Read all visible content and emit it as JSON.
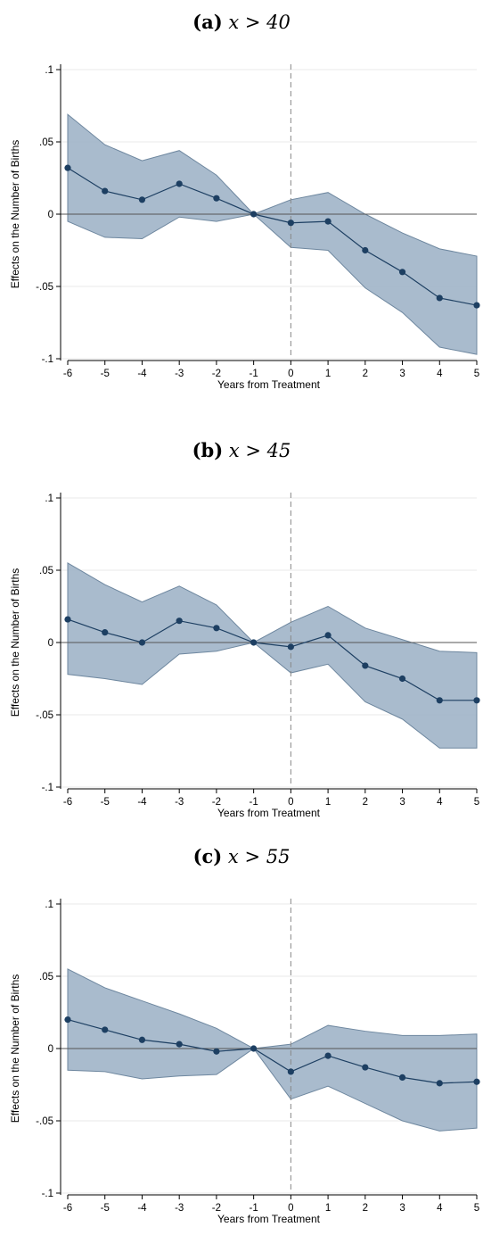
{
  "panels": [
    {
      "label": "(a)",
      "condition": "x > 40"
    },
    {
      "label": "(b)",
      "condition": "x > 45"
    },
    {
      "label": "(c)",
      "condition": "x > 55"
    }
  ],
  "colors": {
    "band": "#9aafc4",
    "band_edge": "#6e879f",
    "line": "#1d3f62",
    "zero": "#555555",
    "grid": "#e8e8e8",
    "vline": "#888888"
  },
  "chart_data": [
    {
      "type": "line",
      "title": "(a) x > 40",
      "xlabel": "Years from Treatment",
      "ylabel": "Effects on the Number of Births",
      "x": [
        -6,
        -5,
        -4,
        -3,
        -2,
        -1,
        0,
        1,
        2,
        3,
        4,
        5
      ],
      "xticks": [
        "-6",
        "-5",
        "-4",
        "-3",
        "-2",
        "-1",
        "0",
        "1",
        "2",
        "3",
        "4",
        "5"
      ],
      "yticks": [
        ".1",
        ".05",
        "0",
        "-.05",
        "-.1"
      ],
      "ytick_values": [
        0.1,
        0.05,
        0,
        -0.05,
        -0.1
      ],
      "ylim": [
        -0.1,
        0.1
      ],
      "vline_x": 0,
      "hline_y": 0,
      "series": [
        {
          "estimate": [
            0.032,
            0.016,
            0.01,
            0.021,
            0.011,
            0.0,
            -0.006,
            -0.005,
            -0.025,
            -0.04,
            -0.058,
            -0.063
          ],
          "ci_upper": [
            0.069,
            0.048,
            0.037,
            0.044,
            0.027,
            0.0,
            0.01,
            0.015,
            0.0,
            -0.013,
            -0.024,
            -0.029
          ],
          "ci_lower": [
            -0.005,
            -0.016,
            -0.017,
            -0.002,
            -0.005,
            0.0,
            -0.023,
            -0.025,
            -0.051,
            -0.068,
            -0.092,
            -0.097
          ]
        }
      ]
    },
    {
      "type": "line",
      "title": "(b) x > 45",
      "xlabel": "Years from Treatment",
      "ylabel": "Effects on the Number of Births",
      "x": [
        -6,
        -5,
        -4,
        -3,
        -2,
        -1,
        0,
        1,
        2,
        3,
        4,
        5
      ],
      "xticks": [
        "-6",
        "-5",
        "-4",
        "-3",
        "-2",
        "-1",
        "0",
        "1",
        "2",
        "3",
        "4",
        "5"
      ],
      "yticks": [
        ".1",
        ".05",
        "0",
        "-.05",
        "-.1"
      ],
      "ytick_values": [
        0.1,
        0.05,
        0,
        -0.05,
        -0.1
      ],
      "ylim": [
        -0.1,
        0.1
      ],
      "vline_x": 0,
      "hline_y": 0,
      "series": [
        {
          "estimate": [
            0.016,
            0.007,
            0.0,
            0.015,
            0.01,
            0.0,
            -0.003,
            0.005,
            -0.016,
            -0.025,
            -0.04,
            -0.04
          ],
          "ci_upper": [
            0.055,
            0.04,
            0.028,
            0.039,
            0.026,
            0.0,
            0.014,
            0.025,
            0.01,
            0.002,
            -0.006,
            -0.007
          ],
          "ci_lower": [
            -0.022,
            -0.025,
            -0.029,
            -0.008,
            -0.006,
            0.0,
            -0.021,
            -0.015,
            -0.041,
            -0.053,
            -0.073,
            -0.073
          ]
        }
      ]
    },
    {
      "type": "line",
      "title": "(c) x > 55",
      "xlabel": "Years from Treatment",
      "ylabel": "Effects on the Number of Births",
      "x": [
        -6,
        -5,
        -4,
        -3,
        -2,
        -1,
        0,
        1,
        2,
        3,
        4,
        5
      ],
      "xticks": [
        "-6",
        "-5",
        "-4",
        "-3",
        "-2",
        "-1",
        "0",
        "1",
        "2",
        "3",
        "4",
        "5"
      ],
      "yticks": [
        ".1",
        ".05",
        "0",
        "-.05",
        "-.1"
      ],
      "ytick_values": [
        0.1,
        0.05,
        0,
        -0.05,
        -0.1
      ],
      "ylim": [
        -0.1,
        0.1
      ],
      "vline_x": 0,
      "hline_y": 0,
      "series": [
        {
          "estimate": [
            0.02,
            0.013,
            0.006,
            0.003,
            -0.002,
            0.0,
            -0.016,
            -0.005,
            -0.013,
            -0.02,
            -0.024,
            -0.023
          ],
          "ci_upper": [
            0.055,
            0.042,
            0.033,
            0.024,
            0.014,
            0.0,
            0.003,
            0.016,
            0.012,
            0.009,
            0.009,
            0.01
          ],
          "ci_lower": [
            -0.015,
            -0.016,
            -0.021,
            -0.019,
            -0.018,
            0.0,
            -0.035,
            -0.026,
            -0.038,
            -0.05,
            -0.057,
            -0.055
          ]
        }
      ]
    }
  ]
}
